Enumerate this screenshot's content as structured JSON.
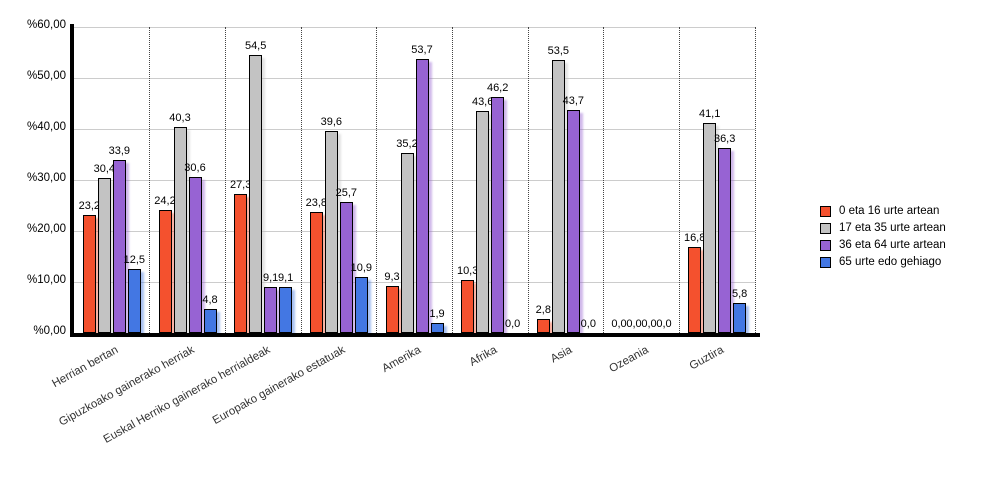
{
  "chart_data": {
    "type": "bar",
    "title": "",
    "xlabel": "",
    "ylabel": "",
    "ylim": [
      0,
      60
    ],
    "y_tick_step": 10,
    "y_ticks": [
      "%0,00",
      "%10,00",
      "%20,00",
      "%30,00",
      "%40,00",
      "%50,00",
      "%60,00"
    ],
    "grid": true,
    "group_separators": "dotted",
    "legend_position": "right",
    "decimal_separator": ",",
    "categories": [
      "Herrian bertan",
      "Gipuzkoako gainerako herriak",
      "Euskal Herriko gainerako herrialdeak",
      "Europako gainerako estatuak",
      "Amerika",
      "Afrika",
      "Asia",
      "Ozeania",
      "Guztira"
    ],
    "series": [
      {
        "name": "0 eta 16 urte artean",
        "color": "#F4512E",
        "values": [
          23.2,
          24.2,
          27.3,
          23.8,
          9.3,
          10.3,
          2.8,
          0.0,
          16.8
        ]
      },
      {
        "name": "17 eta 35 urte artean",
        "color": "#C3C3C3",
        "values": [
          30.4,
          40.3,
          54.5,
          39.6,
          35.2,
          43.6,
          53.5,
          0.0,
          41.1
        ]
      },
      {
        "name": "36 eta 64 urte artean",
        "color": "#9763D3",
        "values": [
          33.9,
          30.6,
          9.1,
          25.7,
          53.7,
          46.2,
          43.7,
          0.0,
          36.3
        ]
      },
      {
        "name": "65 urte edo gehiago",
        "color": "#4377E3",
        "values": [
          12.5,
          4.8,
          9.1,
          10.9,
          1.9,
          0.0,
          0.0,
          0.0,
          5.8
        ]
      }
    ]
  }
}
